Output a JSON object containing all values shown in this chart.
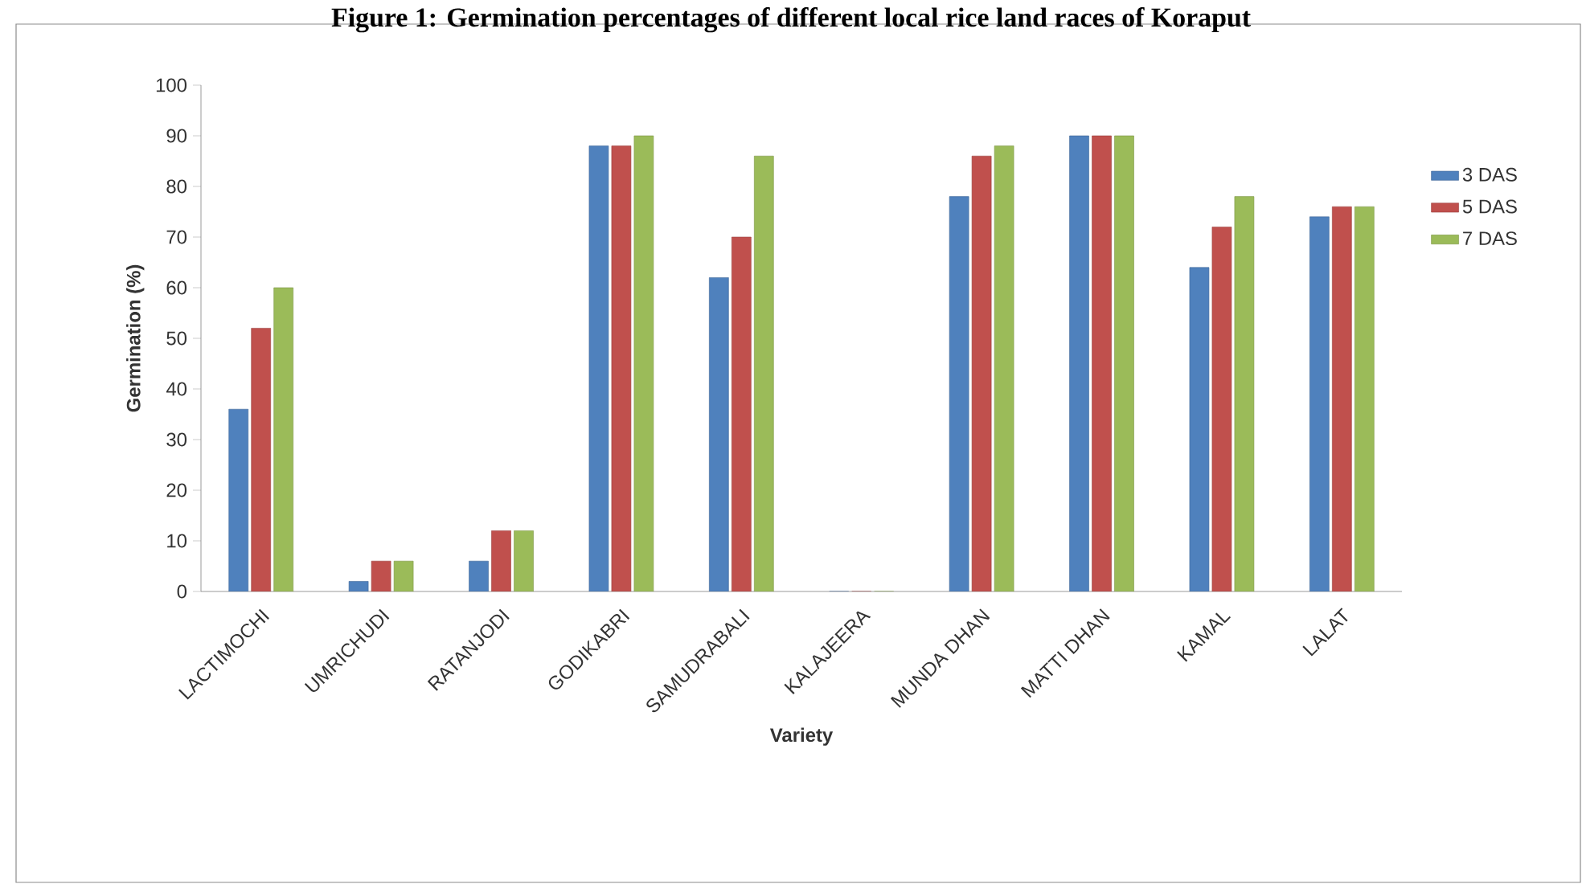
{
  "chart_data": {
    "type": "bar",
    "title": "Figure 1: Germination percentages of different local rice land races of Koraput",
    "xlabel": "Variety",
    "ylabel": "Germination (%)",
    "categories": [
      "LACTIMOCHI",
      "UMRICHUDI",
      "RATANJODI",
      "GODIKABRI",
      "SAMUDRABALI",
      "KALAJEERA",
      "MUNDA DHAN",
      "MATTI DHAN",
      "KAMAL",
      "LALAT"
    ],
    "series": [
      {
        "name": "3 DAS",
        "color": "#4f81bd",
        "values": [
          36,
          2,
          6,
          88,
          62,
          0,
          78,
          90,
          64,
          74
        ]
      },
      {
        "name": "5 DAS",
        "color": "#c0504d",
        "values": [
          52,
          6,
          12,
          88,
          70,
          0,
          86,
          90,
          72,
          76
        ]
      },
      {
        "name": "7 DAS",
        "color": "#9bbb59",
        "values": [
          60,
          6,
          12,
          90,
          86,
          0,
          88,
          90,
          78,
          76
        ]
      }
    ],
    "ylim": [
      0,
      100
    ],
    "yticks": [
      0,
      10,
      20,
      30,
      40,
      50,
      60,
      70,
      80,
      90,
      100
    ],
    "legend": "right"
  }
}
